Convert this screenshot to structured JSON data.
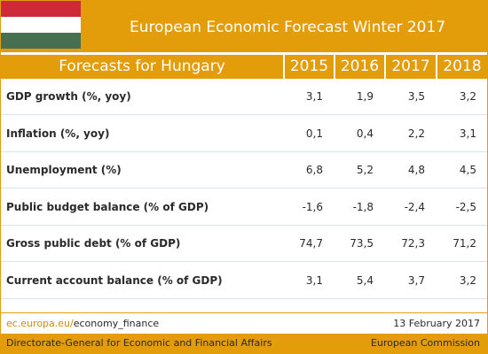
{
  "header": {
    "title": "European Economic Forecast Winter 2017"
  },
  "table": {
    "columns": [
      "Forecasts for Hungary",
      "2015",
      "2016",
      "2017",
      "2018"
    ],
    "rows": [
      [
        "GDP growth (%, yoy)",
        "3,1",
        "1,9",
        "3,5",
        "3,2"
      ],
      [
        "Inflation (%, yoy)",
        "0,1",
        "0,4",
        "2,2",
        "3,1"
      ],
      [
        "Unemployment (%)",
        "6,8",
        "5,2",
        "4,8",
        "4,5"
      ],
      [
        "Public budget balance (% of GDP)",
        "-1,6",
        "-1,8",
        "-2,4",
        "-2,5"
      ],
      [
        "Gross public debt (% of GDP)",
        "74,7",
        "73,5",
        "72,3",
        "71,2"
      ],
      [
        "Current account balance (% of GDP)",
        "3,1",
        "5,4",
        "3,7",
        "3,2"
      ]
    ]
  },
  "footer": {
    "link_domain": "ec.europa.eu/",
    "link_path": "economy_finance",
    "date": "13 February 2017",
    "department": "Directorate-General for Economic and Financial Affairs",
    "organization": "European Commission"
  }
}
